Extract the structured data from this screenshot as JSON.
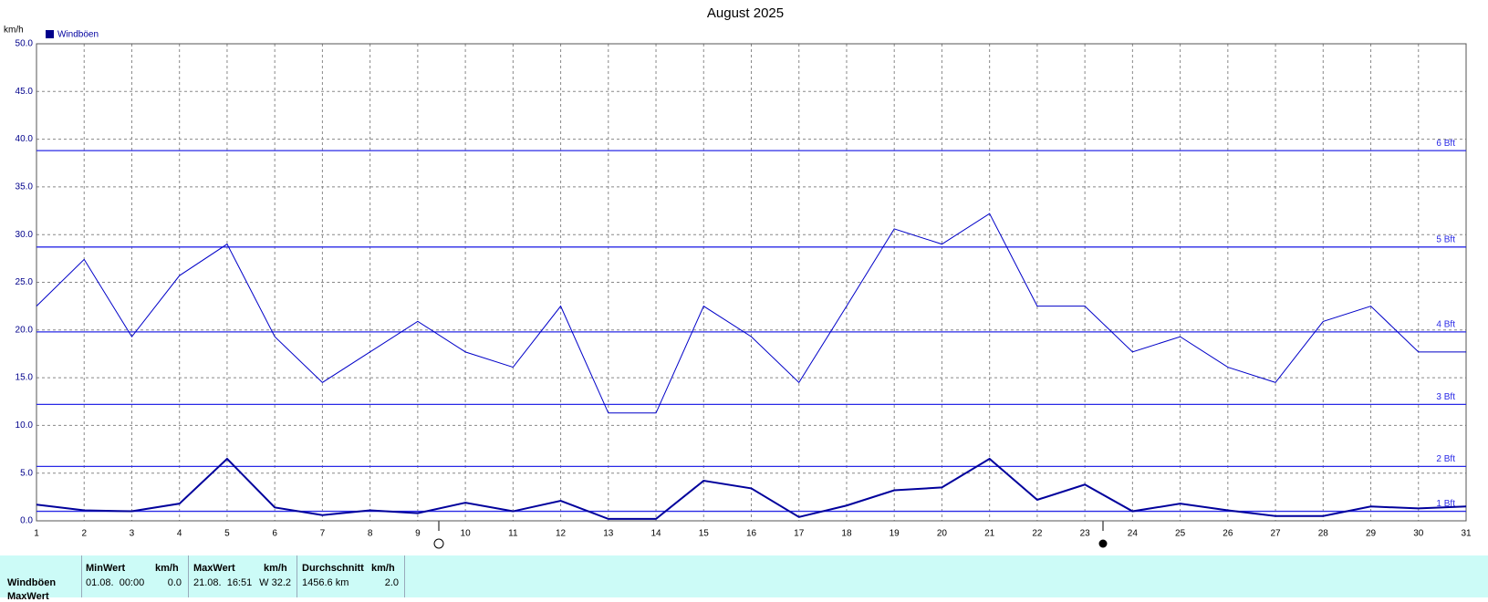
{
  "chart_data": {
    "type": "line",
    "title": "August 2025",
    "y_label": "km/h",
    "x": [
      1,
      2,
      3,
      4,
      5,
      6,
      7,
      8,
      9,
      10,
      11,
      12,
      13,
      14,
      15,
      16,
      17,
      18,
      19,
      20,
      21,
      22,
      23,
      24,
      25,
      26,
      27,
      28,
      29,
      30,
      31
    ],
    "xlim": [
      1,
      31
    ],
    "xticks": [
      1,
      2,
      3,
      4,
      5,
      6,
      7,
      8,
      9,
      10,
      11,
      12,
      13,
      14,
      15,
      16,
      17,
      18,
      19,
      20,
      21,
      22,
      23,
      24,
      25,
      26,
      27,
      28,
      29,
      30,
      31
    ],
    "ylim": [
      0,
      50
    ],
    "yticks": [
      {
        "value": 0,
        "label": "0.0"
      },
      {
        "value": 5,
        "label": "5.0"
      },
      {
        "value": 10,
        "label": "10.0"
      },
      {
        "value": 15,
        "label": "15.0"
      },
      {
        "value": 20,
        "label": "20.0"
      },
      {
        "value": 25,
        "label": "25.0"
      },
      {
        "value": 30,
        "label": "30.0"
      },
      {
        "value": 35,
        "label": "35.0"
      },
      {
        "value": 40,
        "label": "40.0"
      },
      {
        "value": 45,
        "label": "45.0"
      },
      {
        "value": 50,
        "label": "50.0"
      }
    ],
    "grid": true,
    "series": [
      {
        "name": "Windböen",
        "color": "#0000c8",
        "line_width": 1,
        "values": [
          22.5,
          27.4,
          19.3,
          25.7,
          29.0,
          19.3,
          14.5,
          17.7,
          20.9,
          17.7,
          16.1,
          22.5,
          11.3,
          11.3,
          22.5,
          19.3,
          14.5,
          22.5,
          30.6,
          29.0,
          32.2,
          22.5,
          22.5,
          17.7,
          19.3,
          16.1,
          14.5,
          20.9,
          22.5,
          17.7,
          17.7
        ]
      },
      {
        "color": "#00009c",
        "line_width": 2,
        "values": [
          1.7,
          1.1,
          1.0,
          1.8,
          6.5,
          1.4,
          0.6,
          1.1,
          0.8,
          1.9,
          1.0,
          2.1,
          0.2,
          0.2,
          4.2,
          3.4,
          0.4,
          1.6,
          3.2,
          3.5,
          6.5,
          2.2,
          3.8,
          1.0,
          1.8,
          1.1,
          0.5,
          0.5,
          1.5,
          1.3,
          1.5
        ]
      }
    ],
    "reference_lines": [
      {
        "label": "1 Bft",
        "value": 1.0
      },
      {
        "label": "2 Bft",
        "value": 5.7
      },
      {
        "label": "3 Bft",
        "value": 12.2
      },
      {
        "label": "4 Bft",
        "value": 19.8
      },
      {
        "label": "5 Bft",
        "value": 28.7
      },
      {
        "label": "6 Bft",
        "value": 38.8
      }
    ],
    "reference_color": "#2a2ae6"
  },
  "table": {
    "row_labels": [
      "Windböen",
      "MaxWert"
    ],
    "columns": [
      {
        "header": "MinWert",
        "unit": "km/h",
        "time": "01.08.  00:00",
        "value": "0.0"
      },
      {
        "header": "MaxWert",
        "unit": "km/h",
        "time": "21.08.  16:51",
        "value": "W 32.2"
      },
      {
        "header": "Durchschnitt",
        "unit": "km/h",
        "time": "1456.6 km",
        "value": "2.0"
      }
    ]
  }
}
